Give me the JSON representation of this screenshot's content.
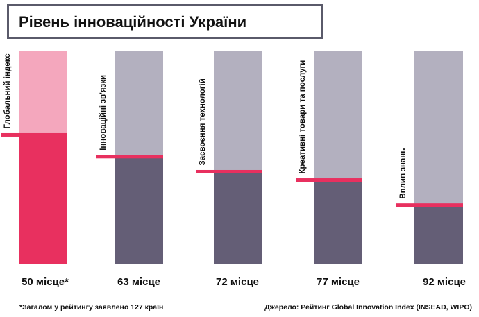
{
  "title": "Рівень інноваційності України",
  "footnote": "*Загалом у рейтингу заявлено 127 країн",
  "source": "Джерело: Рейтинг Global Innovation Index (INSEAD, WIPO)",
  "colors": {
    "highlight_top": "#f4a7bd",
    "highlight_bottom": "#e8305f",
    "top": "#b3b0bf",
    "bottom": "#645e76",
    "marker": "#e8305f"
  },
  "chart_data": {
    "type": "bar",
    "total_countries": 127,
    "categories": [
      "Глобальний індекс",
      "Інноваційні зв'язки",
      "Засвоєння технологій",
      "Креативні товари та послуги",
      "Вплив знань"
    ],
    "values": [
      50,
      63,
      72,
      77,
      92
    ],
    "value_labels": [
      "50 місце*",
      "63 місце",
      "72 місце",
      "77 місце",
      "92 місце"
    ],
    "highlight_index": 0
  }
}
